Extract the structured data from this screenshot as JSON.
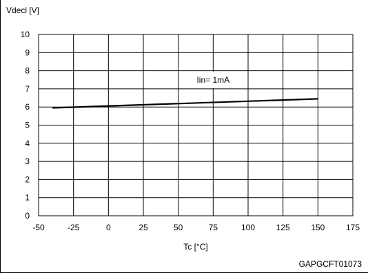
{
  "chart_data": {
    "type": "line",
    "title": "",
    "xlabel": "Tc [°C]",
    "ylabel": "Vdecl [V]",
    "xlim": [
      -50,
      175
    ],
    "ylim": [
      0,
      10
    ],
    "xticks": [
      -50,
      -25,
      0,
      25,
      50,
      75,
      100,
      125,
      150,
      175
    ],
    "yticks": [
      0,
      1,
      2,
      3,
      4,
      5,
      6,
      7,
      8,
      9,
      10
    ],
    "grid": true,
    "legend": "none",
    "series": [
      {
        "x": [
          -40,
          150
        ],
        "y": [
          5.95,
          6.45
        ],
        "color": "#000000"
      }
    ],
    "annotations": [
      {
        "text": "Iin= 1mA",
        "x": 75,
        "y": 7.5
      }
    ]
  },
  "figure": {
    "reference_code": "GAPGCFT01073"
  }
}
